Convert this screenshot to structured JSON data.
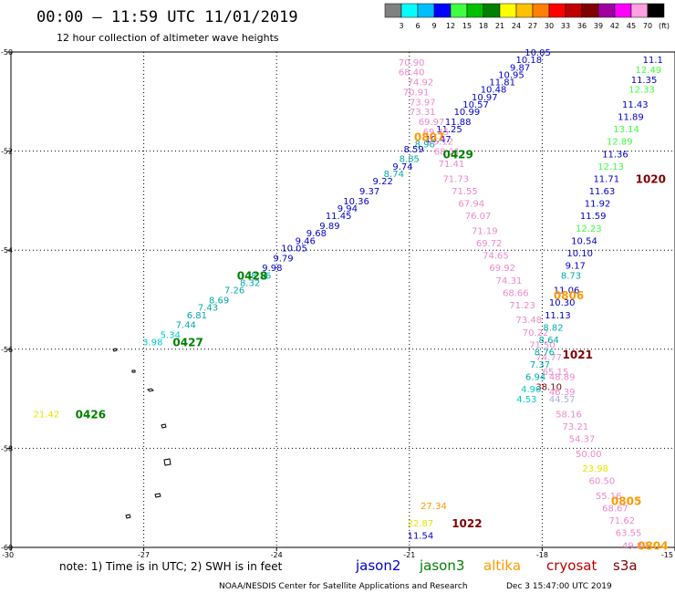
{
  "header": {
    "title": "00:00 – 11:59 UTC 11/01/2019",
    "subtitle": "12 hour collection of altimeter wave heights"
  },
  "colorbar": {
    "colors": [
      "#808080",
      "#00ffff",
      "#00bfff",
      "#0000ff",
      "#40ff40",
      "#00c000",
      "#008000",
      "#ffff00",
      "#ffc000",
      "#ff8000",
      "#ff0000",
      "#c00000",
      "#800000",
      "#a000a0",
      "#ff00ff",
      "#ffa0e0",
      "#000000"
    ],
    "labels": [
      "3",
      "6",
      "9",
      "12",
      "15",
      "18",
      "21",
      "24",
      "27",
      "30",
      "33",
      "36",
      "39",
      "42",
      "45",
      "70",
      "(ft)"
    ]
  },
  "footer": {
    "note": "note: 1) Time is in UTC; 2) SWH is in feet",
    "credit": "NOAA/NESDIS Center for Satellite Applications and Research",
    "timestamp": "Dec  3 15:47:00 UTC 2019"
  },
  "chart_data": {
    "type": "scatter",
    "title": "00:00 – 11:59 UTC 11/01/2019",
    "subtitle": "12 hour collection of altimeter wave heights",
    "xlim": [
      -30,
      -15
    ],
    "ylim": [
      -60,
      -50
    ],
    "xticks": [
      -30,
      -27,
      -24,
      -21,
      -18,
      -15
    ],
    "yticks": [
      -50,
      -52,
      -54,
      -56,
      -58,
      -60
    ],
    "xtick_labels": [
      "-30",
      "-27",
      "-24",
      "-21",
      "-18",
      "-15"
    ],
    "ytick_labels": [
      "-50",
      "-52",
      "-54",
      "-56",
      "-58",
      "-60"
    ],
    "grid": true,
    "legend": [
      {
        "name": "jason2",
        "color": "#0000c8"
      },
      {
        "name": "jason3",
        "color": "#008000"
      },
      {
        "name": "altika",
        "color": "#ff9900"
      },
      {
        "name": "cryosat",
        "color": "#c00000"
      },
      {
        "name": "s3a",
        "color": "#800000"
      }
    ],
    "points": [
      {
        "x": -18.1,
        "y": -50.0,
        "v": "10.05",
        "c": "#0000c8"
      },
      {
        "x": -18.3,
        "y": -50.15,
        "v": "10.18",
        "c": "#0000c8"
      },
      {
        "x": -18.5,
        "y": -50.3,
        "v": "9.87",
        "c": "#0000c8"
      },
      {
        "x": -18.7,
        "y": -50.45,
        "v": "10.95",
        "c": "#0000c8"
      },
      {
        "x": -18.9,
        "y": -50.6,
        "v": "11.81",
        "c": "#0000c8"
      },
      {
        "x": -19.1,
        "y": -50.75,
        "v": "10.48",
        "c": "#0000c8"
      },
      {
        "x": -19.3,
        "y": -50.9,
        "v": "10.97",
        "c": "#0000c8"
      },
      {
        "x": -19.5,
        "y": -51.05,
        "v": "10.57",
        "c": "#0000c8"
      },
      {
        "x": -19.7,
        "y": -51.2,
        "v": "10.99",
        "c": "#0000c8"
      },
      {
        "x": -19.9,
        "y": -51.4,
        "v": "11.88",
        "c": "#0000c8"
      },
      {
        "x": -20.1,
        "y": -51.55,
        "v": "11.25",
        "c": "#0000c8"
      },
      {
        "x": -20.35,
        "y": -51.75,
        "v": "10.47",
        "c": "#0000c8"
      },
      {
        "x": -20.65,
        "y": -51.85,
        "v": "8.96",
        "c": "#00aaaa"
      },
      {
        "x": -20.9,
        "y": -51.95,
        "v": "8.59",
        "c": "#0000c8"
      },
      {
        "x": -21.0,
        "y": -52.15,
        "v": "8.85",
        "c": "#00aaaa"
      },
      {
        "x": -21.15,
        "y": -52.3,
        "v": "9.74",
        "c": "#0000c8"
      },
      {
        "x": -21.35,
        "y": -52.45,
        "v": "8.74",
        "c": "#00aaaa"
      },
      {
        "x": -21.6,
        "y": -52.6,
        "v": "9.22",
        "c": "#0000c8"
      },
      {
        "x": -21.9,
        "y": -52.8,
        "v": "9.37",
        "c": "#0000c8"
      },
      {
        "x": -22.2,
        "y": -53.0,
        "v": "10.36",
        "c": "#0000c8"
      },
      {
        "x": -22.4,
        "y": -53.15,
        "v": "9.94",
        "c": "#0000c8"
      },
      {
        "x": -22.6,
        "y": -53.3,
        "v": "11.45",
        "c": "#0000c8"
      },
      {
        "x": -22.8,
        "y": -53.5,
        "v": "9.89",
        "c": "#0000c8"
      },
      {
        "x": -23.1,
        "y": -53.65,
        "v": "9.68",
        "c": "#0000c8"
      },
      {
        "x": -23.35,
        "y": -53.8,
        "v": "9.46",
        "c": "#0000c8"
      },
      {
        "x": -23.6,
        "y": -53.95,
        "v": "10.05",
        "c": "#0000c8"
      },
      {
        "x": -23.85,
        "y": -54.15,
        "v": "9.79",
        "c": "#0000c8"
      },
      {
        "x": -24.1,
        "y": -54.35,
        "v": "9.98",
        "c": "#0000c8"
      },
      {
        "x": -24.35,
        "y": -54.5,
        "v": "8.56",
        "c": "#00aaaa"
      },
      {
        "x": -24.6,
        "y": -54.65,
        "v": "8.32",
        "c": "#00aaaa"
      },
      {
        "x": -24.95,
        "y": -54.8,
        "v": "7.26",
        "c": "#00aaaa"
      },
      {
        "x": -25.3,
        "y": -55.0,
        "v": "8.69",
        "c": "#00aaaa"
      },
      {
        "x": -25.55,
        "y": -55.15,
        "v": "7.43",
        "c": "#00aaaa"
      },
      {
        "x": -25.8,
        "y": -55.3,
        "v": "6.81",
        "c": "#00aaaa"
      },
      {
        "x": -26.05,
        "y": -55.5,
        "v": "7.44",
        "c": "#00aaaa"
      },
      {
        "x": -26.4,
        "y": -55.7,
        "v": "5.34",
        "c": "#00cccc"
      },
      {
        "x": -26.8,
        "y": -55.85,
        "v": "3.98",
        "c": "#00cccc"
      },
      {
        "x": -20.95,
        "y": -50.2,
        "v": "70.90",
        "c": "#ee88cc"
      },
      {
        "x": -20.95,
        "y": -50.4,
        "v": "68.40",
        "c": "#ee88cc"
      },
      {
        "x": -20.75,
        "y": -50.6,
        "v": "74.92",
        "c": "#ee88cc"
      },
      {
        "x": -20.85,
        "y": -50.8,
        "v": "70.91",
        "c": "#ee88cc"
      },
      {
        "x": -20.7,
        "y": -51.0,
        "v": "73.97",
        "c": "#ee88cc"
      },
      {
        "x": -20.7,
        "y": -51.2,
        "v": "73.31",
        "c": "#ee88cc"
      },
      {
        "x": -20.5,
        "y": -51.4,
        "v": "69.97",
        "c": "#ee88cc"
      },
      {
        "x": -20.4,
        "y": -51.6,
        "v": "69.45",
        "c": "#ee88cc"
      },
      {
        "x": -20.3,
        "y": -51.8,
        "v": "75.12",
        "c": "#ee88cc"
      },
      {
        "x": -20.15,
        "y": -52.0,
        "v": "68.11",
        "c": "#ee88cc"
      },
      {
        "x": -20.05,
        "y": -52.25,
        "v": "71.41",
        "c": "#ee88cc"
      },
      {
        "x": -19.95,
        "y": -52.55,
        "v": "71.73",
        "c": "#ee88cc"
      },
      {
        "x": -19.75,
        "y": -52.8,
        "v": "71.55",
        "c": "#ee88cc"
      },
      {
        "x": -19.6,
        "y": -53.05,
        "v": "67.94",
        "c": "#ee88cc"
      },
      {
        "x": -19.45,
        "y": -53.3,
        "v": "76.07",
        "c": "#ee88cc"
      },
      {
        "x": -19.3,
        "y": -53.6,
        "v": "71.19",
        "c": "#ee88cc"
      },
      {
        "x": -19.2,
        "y": -53.85,
        "v": "69.72",
        "c": "#ee88cc"
      },
      {
        "x": -19.05,
        "y": -54.1,
        "v": "74.65",
        "c": "#ee88cc"
      },
      {
        "x": -18.9,
        "y": -54.35,
        "v": "69.92",
        "c": "#ee88cc"
      },
      {
        "x": -18.75,
        "y": -54.6,
        "v": "74.31",
        "c": "#ee88cc"
      },
      {
        "x": -18.6,
        "y": -54.85,
        "v": "68.66",
        "c": "#ee88cc"
      },
      {
        "x": -18.45,
        "y": -55.1,
        "v": "71.23",
        "c": "#ee88cc"
      },
      {
        "x": -18.3,
        "y": -55.4,
        "v": "73.48",
        "c": "#ee88cc"
      },
      {
        "x": -18.15,
        "y": -55.65,
        "v": "70.22",
        "c": "#ee88cc"
      },
      {
        "x": -18.0,
        "y": -55.9,
        "v": "71.50",
        "c": "#ee88cc"
      },
      {
        "x": -17.85,
        "y": -56.15,
        "v": "74.77",
        "c": "#ee88cc"
      },
      {
        "x": -17.7,
        "y": -56.45,
        "v": "65.15",
        "c": "#ee88cc"
      },
      {
        "x": -17.55,
        "y": -56.55,
        "v": "48.89",
        "c": "#ee88cc"
      },
      {
        "x": -17.85,
        "y": -56.75,
        "v": "38.10",
        "c": "#800000"
      },
      {
        "x": -17.55,
        "y": -56.85,
        "v": "46.39",
        "c": "#ee88cc"
      },
      {
        "x": -17.55,
        "y": -57.0,
        "v": "44.57",
        "c": "#aaaadd"
      },
      {
        "x": -17.4,
        "y": -57.3,
        "v": "58.16",
        "c": "#ee88cc"
      },
      {
        "x": -17.25,
        "y": -57.55,
        "v": "73.21",
        "c": "#ee88cc"
      },
      {
        "x": -17.1,
        "y": -57.8,
        "v": "54.37",
        "c": "#ee88cc"
      },
      {
        "x": -16.95,
        "y": -58.1,
        "v": "50.00",
        "c": "#ee88cc"
      },
      {
        "x": -16.8,
        "y": -58.4,
        "v": "23.98",
        "c": "#e6e600"
      },
      {
        "x": -16.65,
        "y": -58.65,
        "v": "60.50",
        "c": "#ee88cc"
      },
      {
        "x": -16.5,
        "y": -58.95,
        "v": "55.16",
        "c": "#ee88cc"
      },
      {
        "x": -16.35,
        "y": -59.2,
        "v": "68.67",
        "c": "#ee88cc"
      },
      {
        "x": -16.2,
        "y": -59.45,
        "v": "71.62",
        "c": "#ee88cc"
      },
      {
        "x": -16.05,
        "y": -59.7,
        "v": "63.55",
        "c": "#ee88cc"
      },
      {
        "x": -15.9,
        "y": -59.95,
        "v": "49.88",
        "c": "#ee88cc"
      },
      {
        "x": -15.5,
        "y": -50.15,
        "v": "11.1",
        "c": "#0000c8"
      },
      {
        "x": -15.6,
        "y": -50.35,
        "v": "12.49",
        "c": "#40ff40"
      },
      {
        "x": -15.7,
        "y": -50.55,
        "v": "11.35",
        "c": "#0000c8"
      },
      {
        "x": -15.75,
        "y": -50.75,
        "v": "12.33",
        "c": "#40ff40"
      },
      {
        "x": -15.9,
        "y": -51.05,
        "v": "11.43",
        "c": "#0000c8"
      },
      {
        "x": -16.0,
        "y": -51.3,
        "v": "11.89",
        "c": "#0000c8"
      },
      {
        "x": -16.1,
        "y": -51.55,
        "v": "13.14",
        "c": "#40ff40"
      },
      {
        "x": -16.25,
        "y": -51.8,
        "v": "12.89",
        "c": "#40ff40"
      },
      {
        "x": -16.35,
        "y": -52.05,
        "v": "11.36",
        "c": "#0000c8"
      },
      {
        "x": -16.45,
        "y": -52.3,
        "v": "12.13",
        "c": "#40ff40"
      },
      {
        "x": -16.55,
        "y": -52.55,
        "v": "11.71",
        "c": "#0000c8"
      },
      {
        "x": -16.65,
        "y": -52.8,
        "v": "11.63",
        "c": "#0000c8"
      },
      {
        "x": -16.75,
        "y": -53.05,
        "v": "11.92",
        "c": "#0000c8"
      },
      {
        "x": -16.85,
        "y": -53.3,
        "v": "11.59",
        "c": "#0000c8"
      },
      {
        "x": -16.95,
        "y": -53.55,
        "v": "12.23",
        "c": "#40ff40"
      },
      {
        "x": -17.05,
        "y": -53.8,
        "v": "10.54",
        "c": "#0000c8"
      },
      {
        "x": -17.15,
        "y": -54.05,
        "v": "10.10",
        "c": "#0000c8"
      },
      {
        "x": -17.25,
        "y": -54.3,
        "v": "9.17",
        "c": "#0000c8"
      },
      {
        "x": -17.35,
        "y": -54.5,
        "v": "8.73",
        "c": "#00aaaa"
      },
      {
        "x": -17.45,
        "y": -54.8,
        "v": "11.06",
        "c": "#0000c8"
      },
      {
        "x": -17.55,
        "y": -55.05,
        "v": "10.30",
        "c": "#0000c8"
      },
      {
        "x": -17.65,
        "y": -55.3,
        "v": "11.13",
        "c": "#0000c8"
      },
      {
        "x": -17.75,
        "y": -55.55,
        "v": "8.82",
        "c": "#00aaaa"
      },
      {
        "x": -17.85,
        "y": -55.8,
        "v": "8.64",
        "c": "#00aaaa"
      },
      {
        "x": -17.95,
        "y": -56.05,
        "v": "8.76",
        "c": "#00aaaa"
      },
      {
        "x": -18.05,
        "y": -56.3,
        "v": "7.37",
        "c": "#00aaaa"
      },
      {
        "x": -18.15,
        "y": -56.55,
        "v": "6.94",
        "c": "#00aaaa"
      },
      {
        "x": -18.25,
        "y": -56.8,
        "v": "4.96",
        "c": "#00cccc"
      },
      {
        "x": -18.35,
        "y": -57.0,
        "v": "4.53",
        "c": "#00cccc"
      },
      {
        "x": -29.2,
        "y": -57.3,
        "v": "21.42",
        "c": "#e6e600"
      },
      {
        "x": -20.45,
        "y": -59.15,
        "v": "27.34",
        "c": "#ff9900"
      },
      {
        "x": -20.75,
        "y": -59.5,
        "v": "22.87",
        "c": "#e6e600"
      },
      {
        "x": -20.75,
        "y": -59.75,
        "v": "11.54",
        "c": "#0000c8"
      }
    ],
    "pass_labels": [
      {
        "x": -20.55,
        "y": -51.7,
        "text": "0807",
        "c": "#ff9900"
      },
      {
        "x": -19.9,
        "y": -52.05,
        "text": "0429",
        "c": "#008000"
      },
      {
        "x": -24.55,
        "y": -54.5,
        "text": "0428",
        "c": "#008000"
      },
      {
        "x": -26.0,
        "y": -55.85,
        "text": "0427",
        "c": "#008000"
      },
      {
        "x": -28.2,
        "y": -57.3,
        "text": "0426",
        "c": "#008000"
      },
      {
        "x": -17.4,
        "y": -54.9,
        "text": "0806",
        "c": "#ff9900"
      },
      {
        "x": -15.55,
        "y": -52.55,
        "text": "1020",
        "c": "#800000"
      },
      {
        "x": -17.2,
        "y": -56.1,
        "text": "1021",
        "c": "#800000"
      },
      {
        "x": -19.7,
        "y": -59.5,
        "text": "1022",
        "c": "#800000"
      },
      {
        "x": -16.1,
        "y": -59.05,
        "text": "0805",
        "c": "#ff9900"
      },
      {
        "x": -15.5,
        "y": -59.95,
        "text": "0804",
        "c": "#ff9900"
      }
    ]
  }
}
